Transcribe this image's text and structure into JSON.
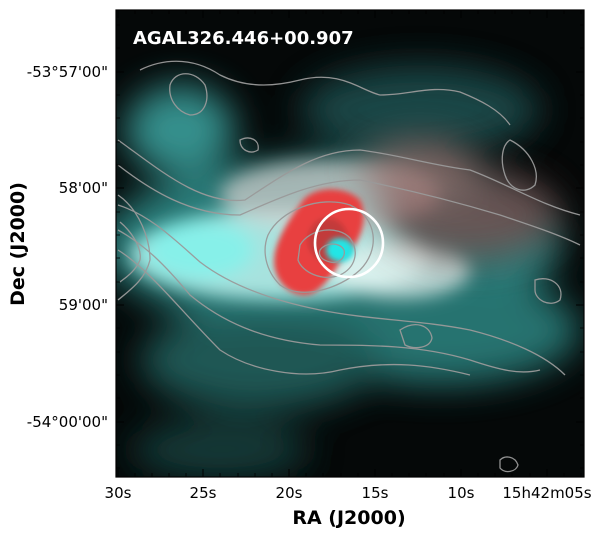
{
  "figure": {
    "title": "AGAL326.446+00.907",
    "xlabel": "RA (J2000)",
    "ylabel": "Dec (J2000)",
    "xticks": [
      "30s",
      "25s",
      "20s",
      "15s",
      "10s",
      "15h42m05s"
    ],
    "yticks": [
      "-53°57'00\"",
      "58'00\"",
      "59'00\"",
      "-54°00'00\""
    ],
    "colors": {
      "background": "#050808",
      "cyan_emission": "#4fe8e2",
      "red_emission": "#e8403f",
      "contour": "#9a9a9a",
      "marker": "#ffffff"
    }
  }
}
